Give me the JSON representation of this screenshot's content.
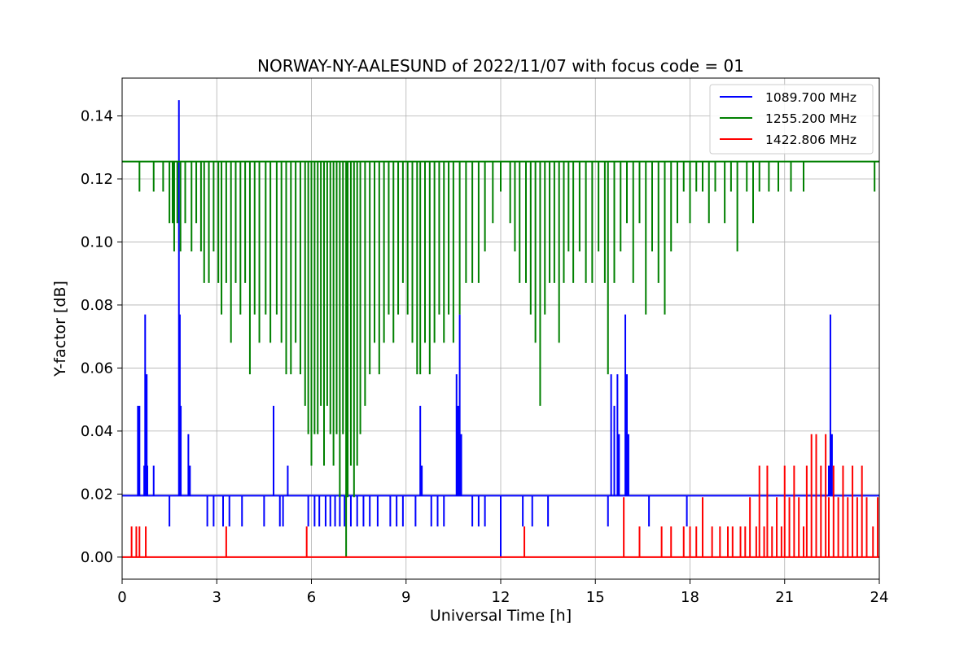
{
  "chart_data": {
    "type": "line",
    "title": "NORWAY-NY-AALESUND of 2022/11/07 with focus code = 01",
    "xlabel": "Universal Time [h]",
    "ylabel": "Y-factor [dB]",
    "xlim": [
      0,
      24
    ],
    "ylim": [
      -0.007,
      0.152
    ],
    "x_ticks": [
      0,
      3,
      6,
      9,
      12,
      15,
      18,
      21,
      24
    ],
    "y_ticks": [
      0.0,
      0.02,
      0.04,
      0.06,
      0.08,
      0.1,
      0.12,
      0.14
    ],
    "x_tick_labels": [
      "0",
      "3",
      "6",
      "9",
      "12",
      "15",
      "18",
      "21",
      "24"
    ],
    "y_tick_labels": [
      "0.00",
      "0.02",
      "0.04",
      "0.06",
      "0.08",
      "0.10",
      "0.12",
      "0.14"
    ],
    "grid": true,
    "legend_position": "top-right",
    "series": [
      {
        "name": "1089.700 MHz",
        "color": "#0000ff",
        "baseline": 0.0195,
        "events": [
          [
            0.5,
            0.048
          ],
          [
            0.55,
            0.048
          ],
          [
            0.7,
            0.029
          ],
          [
            0.73,
            0.077
          ],
          [
            0.78,
            0.058
          ],
          [
            0.8,
            0.029
          ],
          [
            1.0,
            0.029
          ],
          [
            1.5,
            0.0097
          ],
          [
            1.8,
            0.145
          ],
          [
            1.83,
            0.077
          ],
          [
            1.86,
            0.048
          ],
          [
            2.1,
            0.039
          ],
          [
            2.15,
            0.029
          ],
          [
            2.7,
            0.0097
          ],
          [
            2.9,
            0.0097
          ],
          [
            3.2,
            0.0097
          ],
          [
            3.4,
            0.0097
          ],
          [
            3.8,
            0.0097
          ],
          [
            4.5,
            0.0097
          ],
          [
            4.8,
            0.048
          ],
          [
            5.0,
            0.0097
          ],
          [
            5.1,
            0.0097
          ],
          [
            5.25,
            0.029
          ],
          [
            5.9,
            0.0097
          ],
          [
            6.1,
            0.0097
          ],
          [
            6.25,
            0.0097
          ],
          [
            6.45,
            0.0097
          ],
          [
            6.6,
            0.0097
          ],
          [
            6.75,
            0.0097
          ],
          [
            6.9,
            0.0097
          ],
          [
            7.05,
            0.0097
          ],
          [
            7.25,
            0.0097
          ],
          [
            7.45,
            0.0097
          ],
          [
            7.65,
            0.0097
          ],
          [
            7.85,
            0.0097
          ],
          [
            8.1,
            0.0097
          ],
          [
            8.5,
            0.0097
          ],
          [
            8.7,
            0.0097
          ],
          [
            8.9,
            0.0097
          ],
          [
            9.3,
            0.0097
          ],
          [
            9.45,
            0.048
          ],
          [
            9.5,
            0.029
          ],
          [
            9.8,
            0.0097
          ],
          [
            10.0,
            0.0097
          ],
          [
            10.2,
            0.0097
          ],
          [
            10.6,
            0.058
          ],
          [
            10.65,
            0.048
          ],
          [
            10.7,
            0.077
          ],
          [
            10.75,
            0.039
          ],
          [
            11.1,
            0.0097
          ],
          [
            11.3,
            0.0097
          ],
          [
            11.5,
            0.0097
          ],
          [
            12.0,
            0.0
          ],
          [
            12.7,
            0.0097
          ],
          [
            13.0,
            0.0097
          ],
          [
            13.5,
            0.0097
          ],
          [
            15.4,
            0.0097
          ],
          [
            15.5,
            0.058
          ],
          [
            15.6,
            0.048
          ],
          [
            15.7,
            0.058
          ],
          [
            15.75,
            0.039
          ],
          [
            15.95,
            0.077
          ],
          [
            16.0,
            0.058
          ],
          [
            16.05,
            0.039
          ],
          [
            16.7,
            0.0097
          ],
          [
            17.9,
            0.0097
          ],
          [
            22.4,
            0.029
          ],
          [
            22.45,
            0.077
          ],
          [
            22.5,
            0.039
          ]
        ]
      },
      {
        "name": "1255.200 MHz",
        "color": "#008000",
        "baseline": 0.1255,
        "events": [
          [
            0.55,
            0.116
          ],
          [
            1.0,
            0.116
          ],
          [
            1.3,
            0.116
          ],
          [
            1.5,
            0.106
          ],
          [
            1.6,
            0.106
          ],
          [
            1.65,
            0.097
          ],
          [
            1.75,
            0.106
          ],
          [
            1.85,
            0.097
          ],
          [
            2.0,
            0.106
          ],
          [
            2.2,
            0.097
          ],
          [
            2.35,
            0.106
          ],
          [
            2.5,
            0.097
          ],
          [
            2.6,
            0.087
          ],
          [
            2.75,
            0.087
          ],
          [
            2.9,
            0.097
          ],
          [
            3.05,
            0.087
          ],
          [
            3.15,
            0.077
          ],
          [
            3.3,
            0.087
          ],
          [
            3.45,
            0.068
          ],
          [
            3.6,
            0.087
          ],
          [
            3.75,
            0.077
          ],
          [
            3.9,
            0.087
          ],
          [
            4.05,
            0.058
          ],
          [
            4.2,
            0.077
          ],
          [
            4.35,
            0.068
          ],
          [
            4.55,
            0.077
          ],
          [
            4.7,
            0.068
          ],
          [
            4.9,
            0.077
          ],
          [
            5.05,
            0.068
          ],
          [
            5.2,
            0.058
          ],
          [
            5.35,
            0.058
          ],
          [
            5.5,
            0.068
          ],
          [
            5.65,
            0.058
          ],
          [
            5.8,
            0.048
          ],
          [
            5.9,
            0.039
          ],
          [
            6.0,
            0.029
          ],
          [
            6.1,
            0.039
          ],
          [
            6.2,
            0.039
          ],
          [
            6.3,
            0.048
          ],
          [
            6.4,
            0.029
          ],
          [
            6.5,
            0.048
          ],
          [
            6.6,
            0.039
          ],
          [
            6.7,
            0.029
          ],
          [
            6.8,
            0.039
          ],
          [
            6.9,
            0.019
          ],
          [
            7.0,
            0.039
          ],
          [
            7.1,
            0.0
          ],
          [
            7.15,
            0.019
          ],
          [
            7.25,
            0.029
          ],
          [
            7.35,
            0.019
          ],
          [
            7.45,
            0.029
          ],
          [
            7.55,
            0.039
          ],
          [
            7.7,
            0.048
          ],
          [
            7.85,
            0.058
          ],
          [
            8.0,
            0.068
          ],
          [
            8.15,
            0.058
          ],
          [
            8.3,
            0.068
          ],
          [
            8.45,
            0.077
          ],
          [
            8.6,
            0.068
          ],
          [
            8.75,
            0.077
          ],
          [
            8.9,
            0.087
          ],
          [
            9.05,
            0.077
          ],
          [
            9.2,
            0.068
          ],
          [
            9.35,
            0.058
          ],
          [
            9.45,
            0.058
          ],
          [
            9.6,
            0.068
          ],
          [
            9.75,
            0.058
          ],
          [
            9.9,
            0.068
          ],
          [
            10.05,
            0.077
          ],
          [
            10.2,
            0.068
          ],
          [
            10.35,
            0.077
          ],
          [
            10.5,
            0.068
          ],
          [
            10.7,
            0.077
          ],
          [
            10.9,
            0.087
          ],
          [
            11.1,
            0.087
          ],
          [
            11.3,
            0.087
          ],
          [
            11.5,
            0.097
          ],
          [
            11.75,
            0.106
          ],
          [
            12.0,
            0.116
          ],
          [
            12.3,
            0.106
          ],
          [
            12.45,
            0.097
          ],
          [
            12.6,
            0.087
          ],
          [
            12.8,
            0.087
          ],
          [
            12.95,
            0.077
          ],
          [
            13.1,
            0.068
          ],
          [
            13.25,
            0.048
          ],
          [
            13.4,
            0.077
          ],
          [
            13.55,
            0.087
          ],
          [
            13.7,
            0.087
          ],
          [
            13.85,
            0.068
          ],
          [
            14.0,
            0.087
          ],
          [
            14.15,
            0.097
          ],
          [
            14.3,
            0.087
          ],
          [
            14.5,
            0.097
          ],
          [
            14.7,
            0.087
          ],
          [
            14.9,
            0.087
          ],
          [
            15.1,
            0.097
          ],
          [
            15.3,
            0.087
          ],
          [
            15.4,
            0.058
          ],
          [
            15.6,
            0.087
          ],
          [
            15.8,
            0.097
          ],
          [
            16.0,
            0.106
          ],
          [
            16.2,
            0.087
          ],
          [
            16.4,
            0.106
          ],
          [
            16.6,
            0.077
          ],
          [
            16.8,
            0.097
          ],
          [
            17.0,
            0.087
          ],
          [
            17.2,
            0.077
          ],
          [
            17.4,
            0.097
          ],
          [
            17.6,
            0.106
          ],
          [
            17.8,
            0.116
          ],
          [
            18.0,
            0.106
          ],
          [
            18.2,
            0.116
          ],
          [
            18.4,
            0.116
          ],
          [
            18.6,
            0.106
          ],
          [
            18.8,
            0.116
          ],
          [
            19.1,
            0.106
          ],
          [
            19.3,
            0.116
          ],
          [
            19.5,
            0.097
          ],
          [
            19.8,
            0.116
          ],
          [
            20.0,
            0.106
          ],
          [
            20.2,
            0.116
          ],
          [
            20.5,
            0.116
          ],
          [
            20.8,
            0.116
          ],
          [
            21.2,
            0.116
          ],
          [
            21.6,
            0.116
          ],
          [
            23.85,
            0.116
          ]
        ]
      },
      {
        "name": "1422.806 MHz",
        "color": "#ff0000",
        "baseline": 0.0,
        "events": [
          [
            0.3,
            0.0097
          ],
          [
            0.45,
            0.0097
          ],
          [
            0.55,
            0.0097
          ],
          [
            0.75,
            0.0097
          ],
          [
            3.3,
            0.0097
          ],
          [
            5.85,
            0.0097
          ],
          [
            12.75,
            0.0097
          ],
          [
            15.9,
            0.019
          ],
          [
            16.4,
            0.0097
          ],
          [
            17.1,
            0.0097
          ],
          [
            17.4,
            0.0097
          ],
          [
            17.8,
            0.0097
          ],
          [
            18.0,
            0.0097
          ],
          [
            18.2,
            0.0097
          ],
          [
            18.4,
            0.019
          ],
          [
            18.7,
            0.0097
          ],
          [
            18.95,
            0.0097
          ],
          [
            19.2,
            0.0097
          ],
          [
            19.35,
            0.0097
          ],
          [
            19.6,
            0.0097
          ],
          [
            19.75,
            0.0097
          ],
          [
            19.9,
            0.019
          ],
          [
            20.1,
            0.0097
          ],
          [
            20.2,
            0.029
          ],
          [
            20.35,
            0.0097
          ],
          [
            20.45,
            0.029
          ],
          [
            20.6,
            0.0097
          ],
          [
            20.75,
            0.019
          ],
          [
            20.9,
            0.0097
          ],
          [
            21.0,
            0.029
          ],
          [
            21.15,
            0.019
          ],
          [
            21.3,
            0.029
          ],
          [
            21.45,
            0.019
          ],
          [
            21.6,
            0.0097
          ],
          [
            21.7,
            0.029
          ],
          [
            21.85,
            0.039
          ],
          [
            22.0,
            0.039
          ],
          [
            22.15,
            0.029
          ],
          [
            22.3,
            0.039
          ],
          [
            22.4,
            0.019
          ],
          [
            22.55,
            0.029
          ],
          [
            22.7,
            0.019
          ],
          [
            22.85,
            0.029
          ],
          [
            23.0,
            0.019
          ],
          [
            23.15,
            0.029
          ],
          [
            23.3,
            0.019
          ],
          [
            23.45,
            0.029
          ],
          [
            23.6,
            0.019
          ],
          [
            23.8,
            0.0097
          ],
          [
            23.95,
            0.019
          ]
        ]
      }
    ]
  }
}
